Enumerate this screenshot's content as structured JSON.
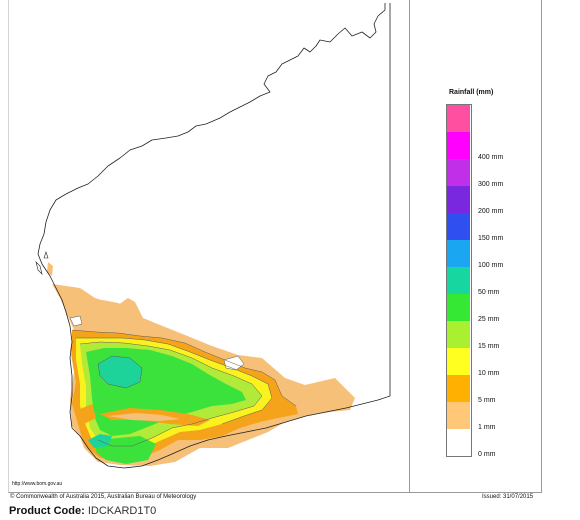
{
  "legend": {
    "title": "Rainfall (mm)",
    "ranges": [
      {
        "label": "",
        "color": "#ff4fa0"
      },
      {
        "label": "400 mm",
        "color": "#ff00ff"
      },
      {
        "label": "300 mm",
        "color": "#c12fe8"
      },
      {
        "label": "200 mm",
        "color": "#7a28e0"
      },
      {
        "label": "150 mm",
        "color": "#2f4ff0"
      },
      {
        "label": "100 mm",
        "color": "#1aa6f0"
      },
      {
        "label": "50 mm",
        "color": "#18d6a0"
      },
      {
        "label": "25 mm",
        "color": "#34e834"
      },
      {
        "label": "15 mm",
        "color": "#a8f030"
      },
      {
        "label": "10 mm",
        "color": "#ffff20"
      },
      {
        "label": "5 mm",
        "color": "#ffb000"
      },
      {
        "label": "1 mm",
        "color": "#ffc878"
      },
      {
        "label": "0 mm",
        "color": "#ffffff"
      }
    ]
  },
  "footer": {
    "url": "http://www.bom.gov.au",
    "copyright": "© Commonwealth of Australia 2015, Australian Bureau of Meteorology",
    "issued": "Issued: 31/07/2015",
    "product_code_label": "Product Code:",
    "product_code_value": "IDCKARD1T0"
  }
}
